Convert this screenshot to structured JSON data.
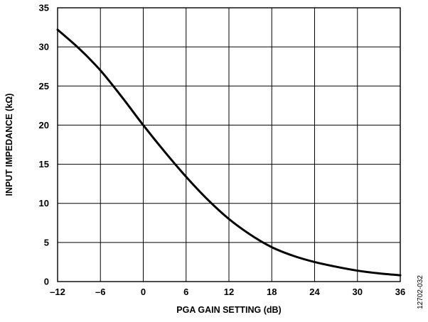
{
  "chart_data": {
    "type": "line",
    "xlabel": "PGA GAIN SETTING (dB)",
    "ylabel": "INPUT IMPEDANCE (kΩ)",
    "xlim": [
      -12,
      36
    ],
    "ylim": [
      0,
      35
    ],
    "x_ticks": [
      "–12",
      "–6",
      "0",
      "6",
      "12",
      "18",
      "24",
      "30",
      "36"
    ],
    "y_ticks": [
      "0",
      "5",
      "10",
      "15",
      "20",
      "25",
      "30",
      "35"
    ],
    "grid": true,
    "series": [
      {
        "x": [
          -12,
          -9,
          -6,
          -3,
          0,
          3,
          6,
          9,
          12,
          15,
          18,
          21,
          24,
          27,
          30,
          33,
          36
        ],
        "y": [
          32.2,
          29.8,
          27.0,
          23.6,
          20.0,
          16.6,
          13.4,
          10.5,
          8.0,
          6.0,
          4.4,
          3.3,
          2.5,
          1.9,
          1.4,
          1.05,
          0.8
        ]
      }
    ],
    "line_color": "#000000",
    "figure_id": "12702-032"
  }
}
